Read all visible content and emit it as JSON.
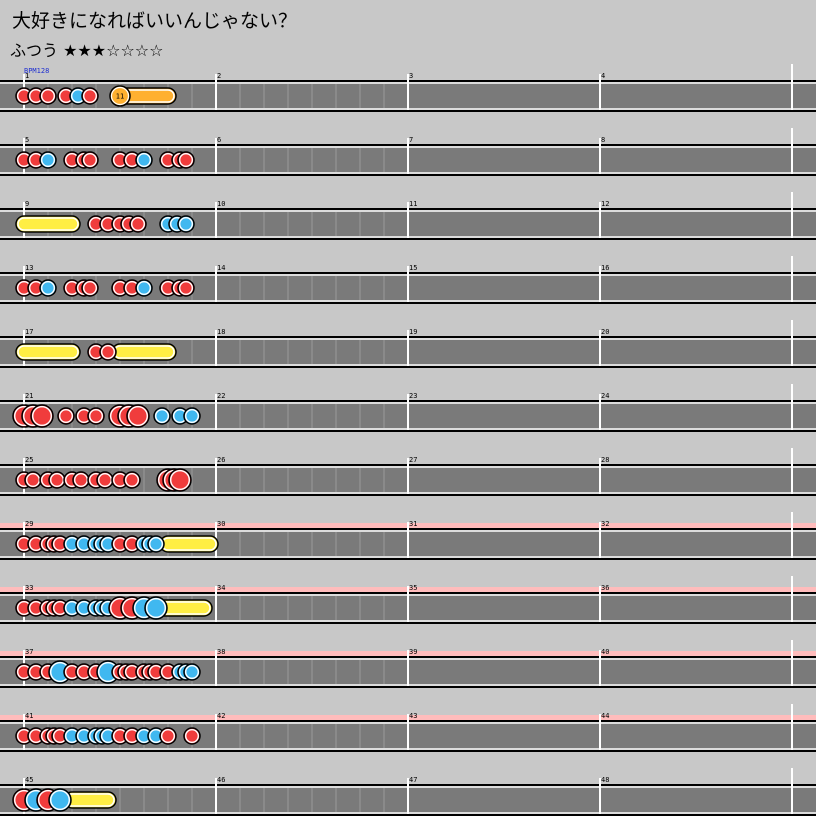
{
  "song_title": "大好きになればいいんじゃない？",
  "difficulty_label": "ふつう ★★★☆☆☆☆",
  "bpm_label": "BPM128",
  "colors": {
    "page_bg": "#c8c8c8",
    "lane_bg": "#7a7a7a",
    "gogo_band": "#ffbcbc",
    "don": "#f03c3c",
    "ka": "#40b8f0",
    "drumroll": "#ffee44",
    "balloon": "#ffb030"
  },
  "note_types": {
    "d": "don (red)",
    "k": "ka (blue)",
    "D": "big don",
    "K": "big ka",
    "roll": "drumroll",
    "balloon": "balloon"
  },
  "rows": [
    {
      "gogo": false,
      "measures": [
        1,
        2,
        3,
        4
      ],
      "notes": [
        [
          "d",
          0
        ],
        [
          "d",
          0.5
        ],
        [
          "d",
          1
        ],
        [
          "d",
          1.75
        ],
        [
          "k",
          2.25
        ],
        [
          "d",
          2.75
        ]
      ],
      "spans": [
        {
          "type": "balloon",
          "start": 4,
          "end": 6,
          "count": "11"
        }
      ]
    },
    {
      "gogo": false,
      "measures": [
        5,
        6,
        7,
        8
      ],
      "notes": [
        [
          "d",
          0
        ],
        [
          "d",
          0.5
        ],
        [
          "k",
          1
        ],
        [
          "d",
          2
        ],
        [
          "d",
          2.5
        ],
        [
          "d",
          2.75
        ],
        [
          "d",
          4
        ],
        [
          "d",
          4.5
        ],
        [
          "k",
          5
        ],
        [
          "d",
          6
        ],
        [
          "d",
          6.5
        ],
        [
          "d",
          6.75
        ]
      ],
      "spans": []
    },
    {
      "gogo": false,
      "measures": [
        9,
        10,
        11,
        12
      ],
      "notes": [
        [
          "d",
          3
        ],
        [
          "d",
          3.5
        ],
        [
          "d",
          4
        ],
        [
          "d",
          4.375
        ],
        [
          "d",
          4.75
        ],
        [
          "k",
          6
        ],
        [
          "k",
          6.375
        ],
        [
          "k",
          6.75
        ]
      ],
      "spans": [
        {
          "type": "roll",
          "start": 0,
          "end": 2
        }
      ]
    },
    {
      "gogo": false,
      "measures": [
        13,
        14,
        15,
        16
      ],
      "notes": [
        [
          "d",
          0
        ],
        [
          "d",
          0.5
        ],
        [
          "k",
          1
        ],
        [
          "d",
          2
        ],
        [
          "d",
          2.5
        ],
        [
          "d",
          2.75
        ],
        [
          "d",
          4
        ],
        [
          "d",
          4.5
        ],
        [
          "k",
          5
        ],
        [
          "d",
          6
        ],
        [
          "d",
          6.5
        ],
        [
          "d",
          6.75
        ]
      ],
      "spans": []
    },
    {
      "gogo": false,
      "measures": [
        17,
        18,
        19,
        20
      ],
      "notes": [
        [
          "d",
          3
        ],
        [
          "d",
          3.5
        ]
      ],
      "spans": [
        {
          "type": "roll",
          "start": 0,
          "end": 2
        },
        {
          "type": "roll",
          "start": 4,
          "end": 6
        }
      ]
    },
    {
      "gogo": false,
      "measures": [
        21,
        22,
        23,
        24
      ],
      "notes": [
        [
          "D",
          0
        ],
        [
          "D",
          0.375
        ],
        [
          "D",
          0.75
        ],
        [
          "d",
          1.75
        ],
        [
          "d",
          2.5
        ],
        [
          "d",
          3
        ],
        [
          "D",
          4
        ],
        [
          "D",
          4.375
        ],
        [
          "D",
          4.75
        ],
        [
          "k",
          5.75
        ],
        [
          "k",
          6.5
        ],
        [
          "k",
          7
        ]
      ],
      "spans": []
    },
    {
      "gogo": false,
      "measures": [
        25,
        26,
        27,
        28
      ],
      "notes": [
        [
          "d",
          0
        ],
        [
          "d",
          0.375
        ],
        [
          "d",
          1
        ],
        [
          "d",
          1.375
        ],
        [
          "d",
          2
        ],
        [
          "d",
          2.375
        ],
        [
          "d",
          3
        ],
        [
          "d",
          3.375
        ],
        [
          "d",
          4
        ],
        [
          "d",
          4.5
        ],
        [
          "D",
          6
        ],
        [
          "D",
          6.25
        ],
        [
          "D",
          6.5
        ]
      ],
      "spans": []
    },
    {
      "gogo": true,
      "measures": [
        29,
        30,
        31,
        32
      ],
      "notes": [
        [
          "d",
          0
        ],
        [
          "d",
          0.5
        ],
        [
          "d",
          1
        ],
        [
          "d",
          1.25
        ],
        [
          "d",
          1.5
        ],
        [
          "k",
          2
        ],
        [
          "k",
          2.5
        ],
        [
          "k",
          3
        ],
        [
          "k",
          3.25
        ],
        [
          "k",
          3.5
        ],
        [
          "d",
          4
        ],
        [
          "d",
          4.5
        ],
        [
          "k",
          5
        ],
        [
          "k",
          5.25
        ],
        [
          "k",
          5.5
        ]
      ],
      "spans": [
        {
          "type": "roll",
          "start": 6,
          "end": 7.75
        }
      ]
    },
    {
      "gogo": true,
      "measures": [
        33,
        34,
        35,
        36
      ],
      "notes": [
        [
          "d",
          0
        ],
        [
          "d",
          0.5
        ],
        [
          "d",
          1
        ],
        [
          "d",
          1.25
        ],
        [
          "d",
          1.5
        ],
        [
          "k",
          2
        ],
        [
          "k",
          2.5
        ],
        [
          "k",
          3
        ],
        [
          "k",
          3.25
        ],
        [
          "k",
          3.5
        ],
        [
          "D",
          4
        ],
        [
          "D",
          4.5
        ],
        [
          "K",
          5
        ],
        [
          "K",
          5.5
        ]
      ],
      "spans": [
        {
          "type": "roll",
          "start": 5.75,
          "end": 7.5
        }
      ]
    },
    {
      "gogo": true,
      "measures": [
        37,
        38,
        39,
        40
      ],
      "notes": [
        [
          "d",
          0
        ],
        [
          "d",
          0.5
        ],
        [
          "d",
          1
        ],
        [
          "K",
          1.5
        ],
        [
          "d",
          2
        ],
        [
          "d",
          2.5
        ],
        [
          "d",
          3
        ],
        [
          "K",
          3.5
        ],
        [
          "d",
          4
        ],
        [
          "d",
          4.25
        ],
        [
          "d",
          4.5
        ],
        [
          "d",
          5
        ],
        [
          "d",
          5.25
        ],
        [
          "d",
          5.5
        ],
        [
          "d",
          6
        ],
        [
          "k",
          6.5
        ],
        [
          "k",
          6.75
        ],
        [
          "k",
          7
        ]
      ],
      "spans": []
    },
    {
      "gogo": true,
      "measures": [
        41,
        42,
        43,
        44
      ],
      "notes": [
        [
          "d",
          0
        ],
        [
          "d",
          0.5
        ],
        [
          "d",
          1
        ],
        [
          "d",
          1.25
        ],
        [
          "d",
          1.5
        ],
        [
          "k",
          2
        ],
        [
          "k",
          2.5
        ],
        [
          "k",
          3
        ],
        [
          "k",
          3.25
        ],
        [
          "k",
          3.5
        ],
        [
          "d",
          4
        ],
        [
          "d",
          4.5
        ],
        [
          "k",
          5
        ],
        [
          "k",
          5.5
        ],
        [
          "d",
          6
        ],
        [
          "d",
          7
        ]
      ],
      "spans": []
    },
    {
      "gogo": false,
      "measures": [
        45,
        46,
        47,
        48
      ],
      "notes": [
        [
          "D",
          0
        ],
        [
          "K",
          0.5
        ],
        [
          "D",
          1
        ],
        [
          "K",
          1.5
        ]
      ],
      "spans": [
        {
          "type": "roll",
          "start": 2,
          "end": 3.5
        }
      ]
    }
  ]
}
